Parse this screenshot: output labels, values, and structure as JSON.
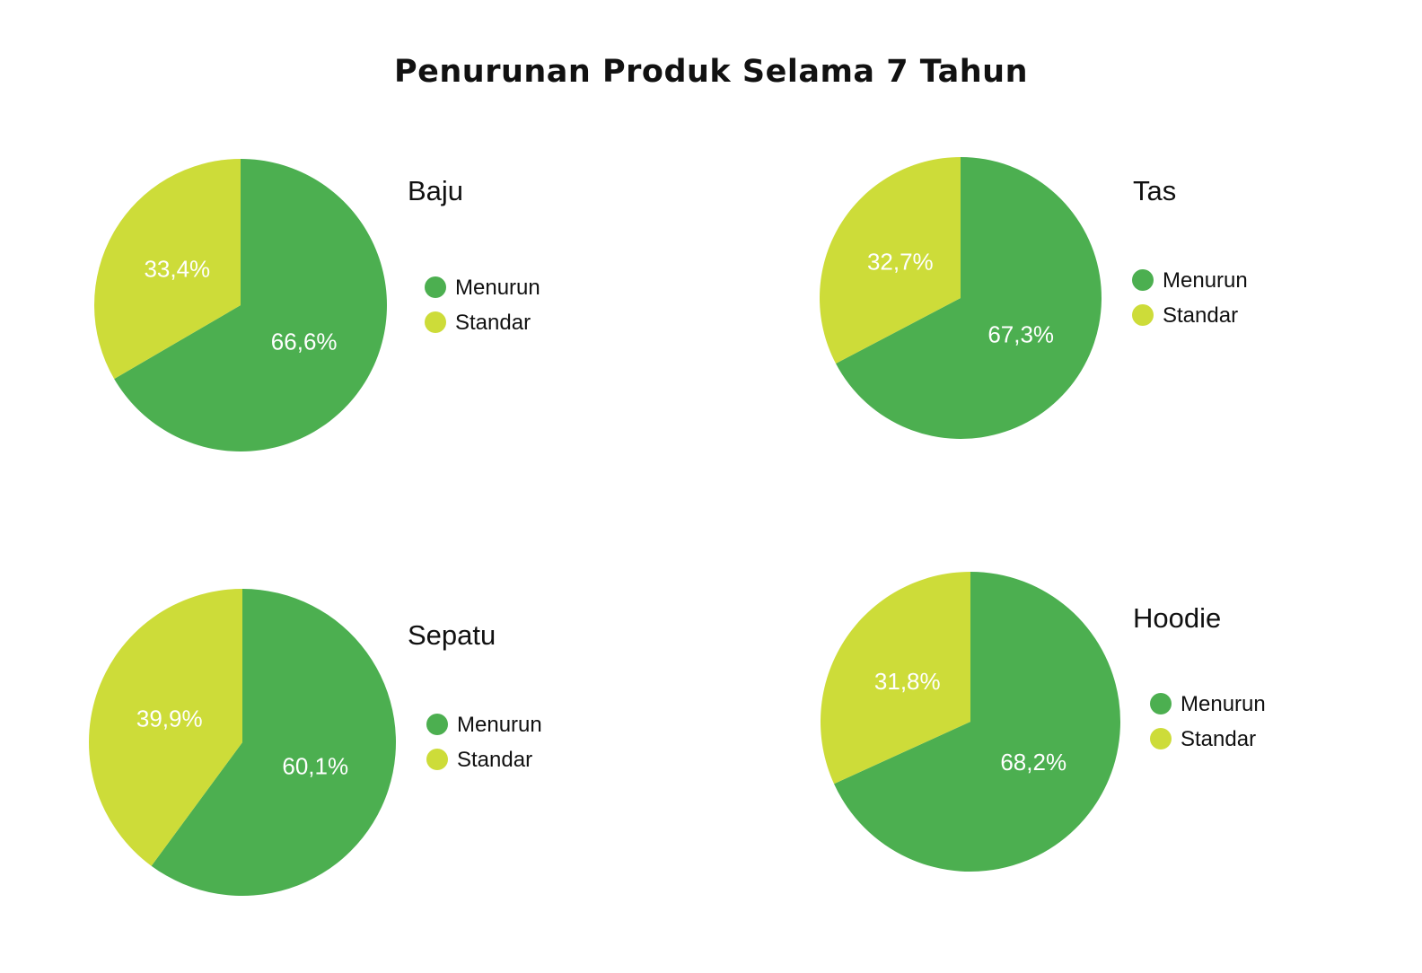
{
  "title": "Penurunan Produk Selama 7 Tahun",
  "colors": {
    "menurun": "#4caf50",
    "standar": "#cddc39"
  },
  "chart_data": [
    {
      "type": "pie",
      "title": "Baju",
      "series": [
        {
          "name": "Menurun",
          "value": 66.6,
          "label": "66,6%"
        },
        {
          "name": "Standar",
          "value": 33.4,
          "label": "33,4%"
        }
      ],
      "legend": "right"
    },
    {
      "type": "pie",
      "title": "Tas",
      "series": [
        {
          "name": "Menurun",
          "value": 67.3,
          "label": "67,3%"
        },
        {
          "name": "Standar",
          "value": 32.7,
          "label": "32,7%"
        }
      ],
      "legend": "right"
    },
    {
      "type": "pie",
      "title": "Sepatu",
      "series": [
        {
          "name": "Menurun",
          "value": 60.1,
          "label": "60,1%"
        },
        {
          "name": "Standar",
          "value": 39.9,
          "label": "39,9%"
        }
      ],
      "legend": "right"
    },
    {
      "type": "pie",
      "title": "Hoodie",
      "series": [
        {
          "name": "Menurun",
          "value": 68.2,
          "label": "68,2%"
        },
        {
          "name": "Standar",
          "value": 31.8,
          "label": "31,8%"
        }
      ],
      "legend": "right"
    }
  ]
}
